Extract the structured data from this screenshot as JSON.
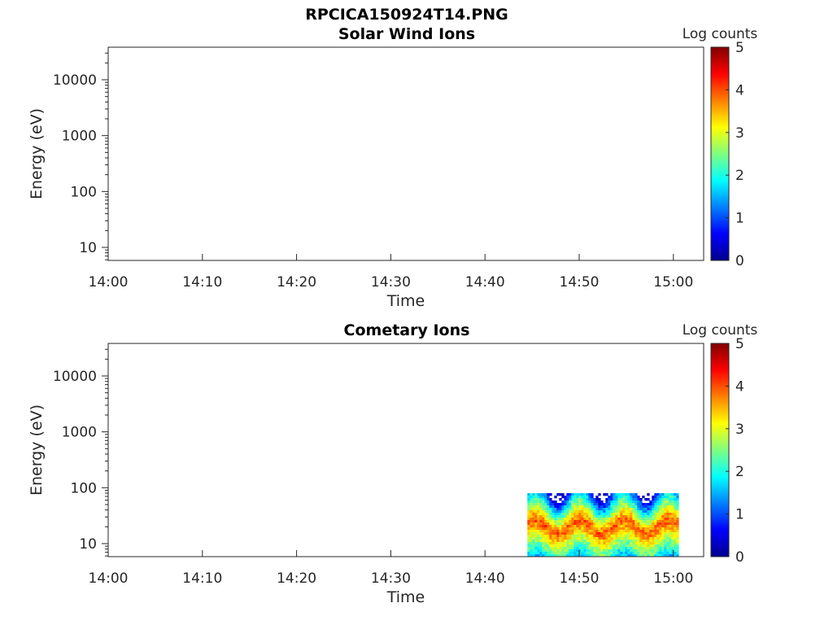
{
  "figure_title": "RPCICA150924T14.PNG",
  "colormap": [
    "#00008f",
    "#0000ff",
    "#0080ff",
    "#00ffff",
    "#80ff80",
    "#ffff00",
    "#ff8000",
    "#ff0000",
    "#800000"
  ],
  "chart_data": [
    {
      "type": "heatmap",
      "title": "Solar Wind Ions",
      "xlabel": "Time",
      "ylabel": "Energy (eV)",
      "x_ticks": [
        "14:00",
        "14:10",
        "14:20",
        "14:30",
        "14:40",
        "14:50",
        "15:00"
      ],
      "y_ticks": [
        "10",
        "100",
        "1000",
        "10000"
      ],
      "y_scale": "log",
      "colorbar_label": "Log counts",
      "colorbar_ticks": [
        "0",
        "1",
        "2",
        "3",
        "4",
        "5"
      ],
      "colorbar_range": [
        0,
        5
      ],
      "data_present": false
    },
    {
      "type": "heatmap",
      "title": "Cometary Ions",
      "xlabel": "Time",
      "ylabel": "Energy (eV)",
      "x_ticks": [
        "14:00",
        "14:10",
        "14:20",
        "14:30",
        "14:40",
        "14:50",
        "15:00"
      ],
      "y_ticks": [
        "10",
        "100",
        "1000",
        "10000"
      ],
      "y_scale": "log",
      "colorbar_label": "Log counts",
      "colorbar_ticks": [
        "0",
        "1",
        "2",
        "3",
        "4",
        "5"
      ],
      "colorbar_range": [
        0,
        5
      ],
      "data_present": true,
      "data_time_range": [
        "14:44:30",
        "15:00:30"
      ],
      "data_energy_range_eV": [
        6,
        80
      ],
      "peak_energy_eV": 20,
      "peak_log_counts": 4
    }
  ]
}
